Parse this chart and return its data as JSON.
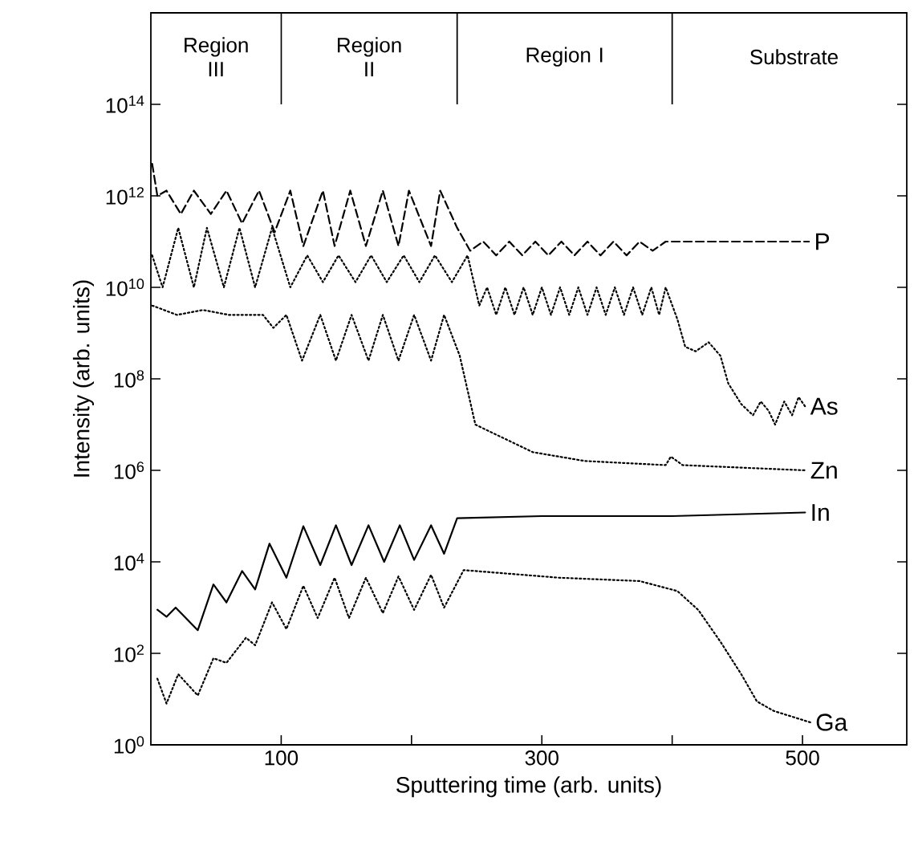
{
  "chart_data": {
    "type": "line",
    "xlabel": "Sputtering time (arb. units)",
    "ylabel": "Intensity (arb. units)",
    "xlim": [
      0,
      580
    ],
    "ylim": [
      1,
      1e+16
    ],
    "log": "y",
    "grid": false,
    "legend": "right",
    "marker": "none",
    "xticks": [
      100,
      {
        "value": 200,
        "label": null
      },
      300,
      {
        "value": 400,
        "label": null
      },
      500
    ],
    "yticks": [
      {
        "value": 1,
        "label": "10$^{0}$"
      },
      {
        "value": 100,
        "label": "10$^{2}$"
      },
      {
        "value": 10000.0,
        "label": "10$^{4}$"
      },
      {
        "value": 1000000.0,
        "label": "10$^{6}$"
      },
      {
        "value": 100000000.0,
        "label": "10$^{8}$"
      },
      {
        "value": 10000000000.0,
        "label": "10$^{10}$"
      },
      {
        "value": 1000000000000.0,
        "label": "10$^{12}$"
      },
      {
        "value": 100000000000000.0,
        "label": "10$^{14}$"
      }
    ],
    "ref_lines": [
      {
        "axis": "x",
        "value": 100
      },
      {
        "axis": "x",
        "value": 235
      },
      {
        "axis": "x",
        "value": 400
      }
    ],
    "annotations": [
      "Region III",
      "Region II",
      "Region I",
      "Substrate"
    ],
    "series": [
      {
        "name": "P",
        "color": "#000000",
        "line_style": "dashed",
        "x": [
          1,
          5,
          12,
          23,
          33,
          46,
          58,
          70,
          83,
          95,
          107,
          117,
          132,
          141,
          153,
          165,
          178,
          190,
          198,
          215,
          222,
          235,
          245,
          255,
          265,
          275,
          285,
          295,
          305,
          315,
          325,
          335,
          345,
          355,
          365,
          375,
          385,
          395,
          505
        ],
        "values": [
          5000000000000.0,
          1000000000000.0,
          1300000000000.0,
          400000000000.0,
          1300000000000.0,
          400000000000.0,
          1300000000000.0,
          250000000000.0,
          1300000000000.0,
          160000000000.0,
          1300000000000.0,
          80000000000.0,
          1300000000000.0,
          80000000000.0,
          1300000000000.0,
          80000000000.0,
          1300000000000.0,
          80000000000.0,
          1300000000000.0,
          80000000000.0,
          1300000000000.0,
          200000000000.0,
          63000000000.0,
          100000000000.0,
          50000000000.0,
          100000000000.0,
          50000000000.0,
          100000000000.0,
          50000000000.0,
          100000000000.0,
          50000000000.0,
          100000000000.0,
          50000000000.0,
          100000000000.0,
          50000000000.0,
          100000000000.0,
          63000000000.0,
          100000000000.0,
          100000000000.0
        ]
      },
      {
        "name": "As",
        "color": "#000000",
        "line_style": "dotted",
        "x": [
          1,
          9,
          21,
          33,
          43,
          56,
          68,
          80,
          93,
          107,
          120,
          132,
          144,
          157,
          169,
          181,
          194,
          206,
          218,
          231,
          243,
          252,
          258,
          265,
          272,
          279,
          286,
          293,
          300,
          307,
          314,
          321,
          328,
          335,
          342,
          349,
          356,
          363,
          370,
          377,
          384,
          390,
          395,
          404,
          410,
          418,
          428,
          437,
          443,
          453,
          462,
          468,
          474,
          479,
          486,
          492,
          497,
          502
        ],
        "values": [
          50000000000.0,
          10000000000.0,
          200000000000.0,
          10000000000.0,
          200000000000.0,
          10000000000.0,
          200000000000.0,
          10000000000.0,
          200000000000.0,
          10000000000.0,
          50000000000.0,
          13000000000.0,
          50000000000.0,
          13000000000.0,
          50000000000.0,
          13000000000.0,
          50000000000.0,
          13000000000.0,
          50000000000.0,
          13000000000.0,
          50000000000.0,
          4000000000.0,
          10000000000.0,
          2500000000.0,
          10000000000.0,
          2500000000.0,
          10000000000.0,
          2500000000.0,
          10000000000.0,
          2500000000.0,
          10000000000.0,
          2500000000.0,
          10000000000.0,
          2500000000.0,
          10000000000.0,
          2500000000.0,
          10000000000.0,
          2500000000.0,
          10000000000.0,
          2500000000.0,
          10000000000.0,
          2500000000.0,
          10000000000.0,
          2000000000.0,
          500000000.0,
          400000000.0,
          630000000.0,
          320000000.0,
          80000000.0,
          28000000.0,
          16000000.0,
          32000000.0,
          20000000.0,
          10000000.0,
          32000000.0,
          16000000.0,
          40000000.0,
          25000000.0
        ]
      },
      {
        "name": "Zn",
        "color": "#000000",
        "line_style": "dotted",
        "x": [
          1,
          20,
          40,
          60,
          86,
          94,
          104,
          116,
          130,
          142,
          154,
          167,
          178,
          190,
          202,
          215,
          225,
          237,
          249,
          256,
          293,
          333,
          395,
          399,
          408,
          502
        ],
        "values": [
          4000000000.0,
          2500000000.0,
          3200000000.0,
          2500000000.0,
          2500000000.0,
          1300000000.0,
          2500000000.0,
          250000000.0,
          2500000000.0,
          250000000.0,
          2500000000.0,
          250000000.0,
          2500000000.0,
          250000000.0,
          2500000000.0,
          250000000.0,
          2500000000.0,
          320000000.0,
          10000000.0,
          8000000.0,
          2500000.0,
          1600000.0,
          1300000.0,
          2000000.0,
          1300000.0,
          1000000.0
        ]
      },
      {
        "name": "In",
        "color": "#000000",
        "line_style": "solid",
        "x": [
          5,
          12,
          19,
          36,
          48,
          58,
          70,
          80,
          91,
          104,
          117,
          130,
          142,
          154,
          167,
          179,
          191,
          202,
          215,
          225,
          235,
          300,
          400,
          502
        ],
        "values": [
          900,
          630,
          1000,
          320,
          3200,
          1300,
          6300,
          2500,
          25000,
          4500,
          60000,
          8500,
          63000,
          8500,
          63000,
          10000,
          63000,
          11000,
          63000,
          15000,
          90000,
          100000,
          100000,
          120000
        ]
      },
      {
        "name": "Ga",
        "color": "#000000",
        "line_style": "dotted",
        "x": [
          5,
          12,
          21,
          36,
          48,
          58,
          73,
          80,
          93,
          104,
          117,
          128,
          141,
          152,
          165,
          178,
          190,
          202,
          215,
          225,
          240,
          313,
          375,
          404,
          420,
          437,
          453,
          465,
          478,
          506
        ],
        "values": [
          28,
          8,
          35,
          12,
          78,
          62,
          220,
          150,
          1300,
          340,
          3000,
          590,
          4500,
          590,
          4500,
          760,
          4800,
          890,
          5200,
          1000,
          6600,
          4500,
          3800,
          2300,
          890,
          180,
          35,
          8.9,
          5.5,
          3.1
        ]
      }
    ]
  }
}
